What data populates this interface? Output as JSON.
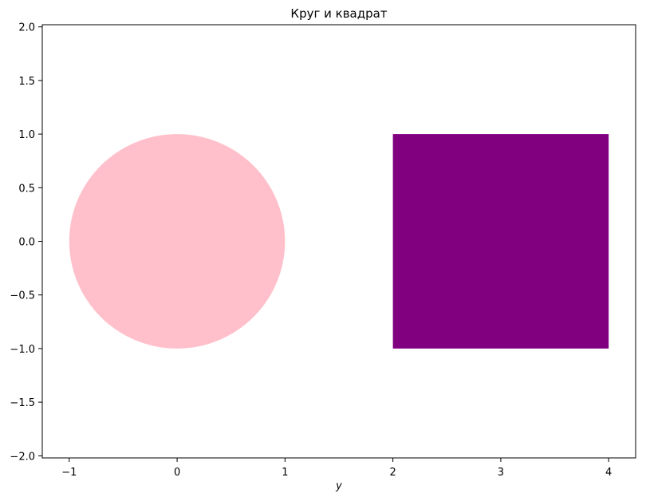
{
  "chart_data": {
    "type": "scatter",
    "title": "Круг и квадрат",
    "xlabel": "y",
    "ylabel": "",
    "xlim": [
      -1.25,
      4.25
    ],
    "ylim": [
      -2.02,
      2.02
    ],
    "x_ticks": [
      -1,
      0,
      1,
      2,
      3,
      4
    ],
    "x_tick_labels": [
      "−1",
      "0",
      "1",
      "2",
      "3",
      "4"
    ],
    "y_ticks": [
      2.0,
      1.5,
      1.0,
      0.5,
      0.0,
      -0.5,
      -1.0,
      -1.5,
      -2.0
    ],
    "y_tick_labels": [
      "2.0",
      "1.5",
      "1.0",
      "0.5",
      "0.0",
      "−0.5",
      "−1.0",
      "−1.5",
      "−2.0"
    ],
    "grid": false,
    "shapes": [
      {
        "kind": "circle",
        "center": [
          0,
          0
        ],
        "radius": 1,
        "color": "#ffc0cb"
      },
      {
        "kind": "rectangle",
        "x_range": [
          2,
          4
        ],
        "y_range": [
          -1,
          1
        ],
        "color": "#800080"
      }
    ]
  }
}
